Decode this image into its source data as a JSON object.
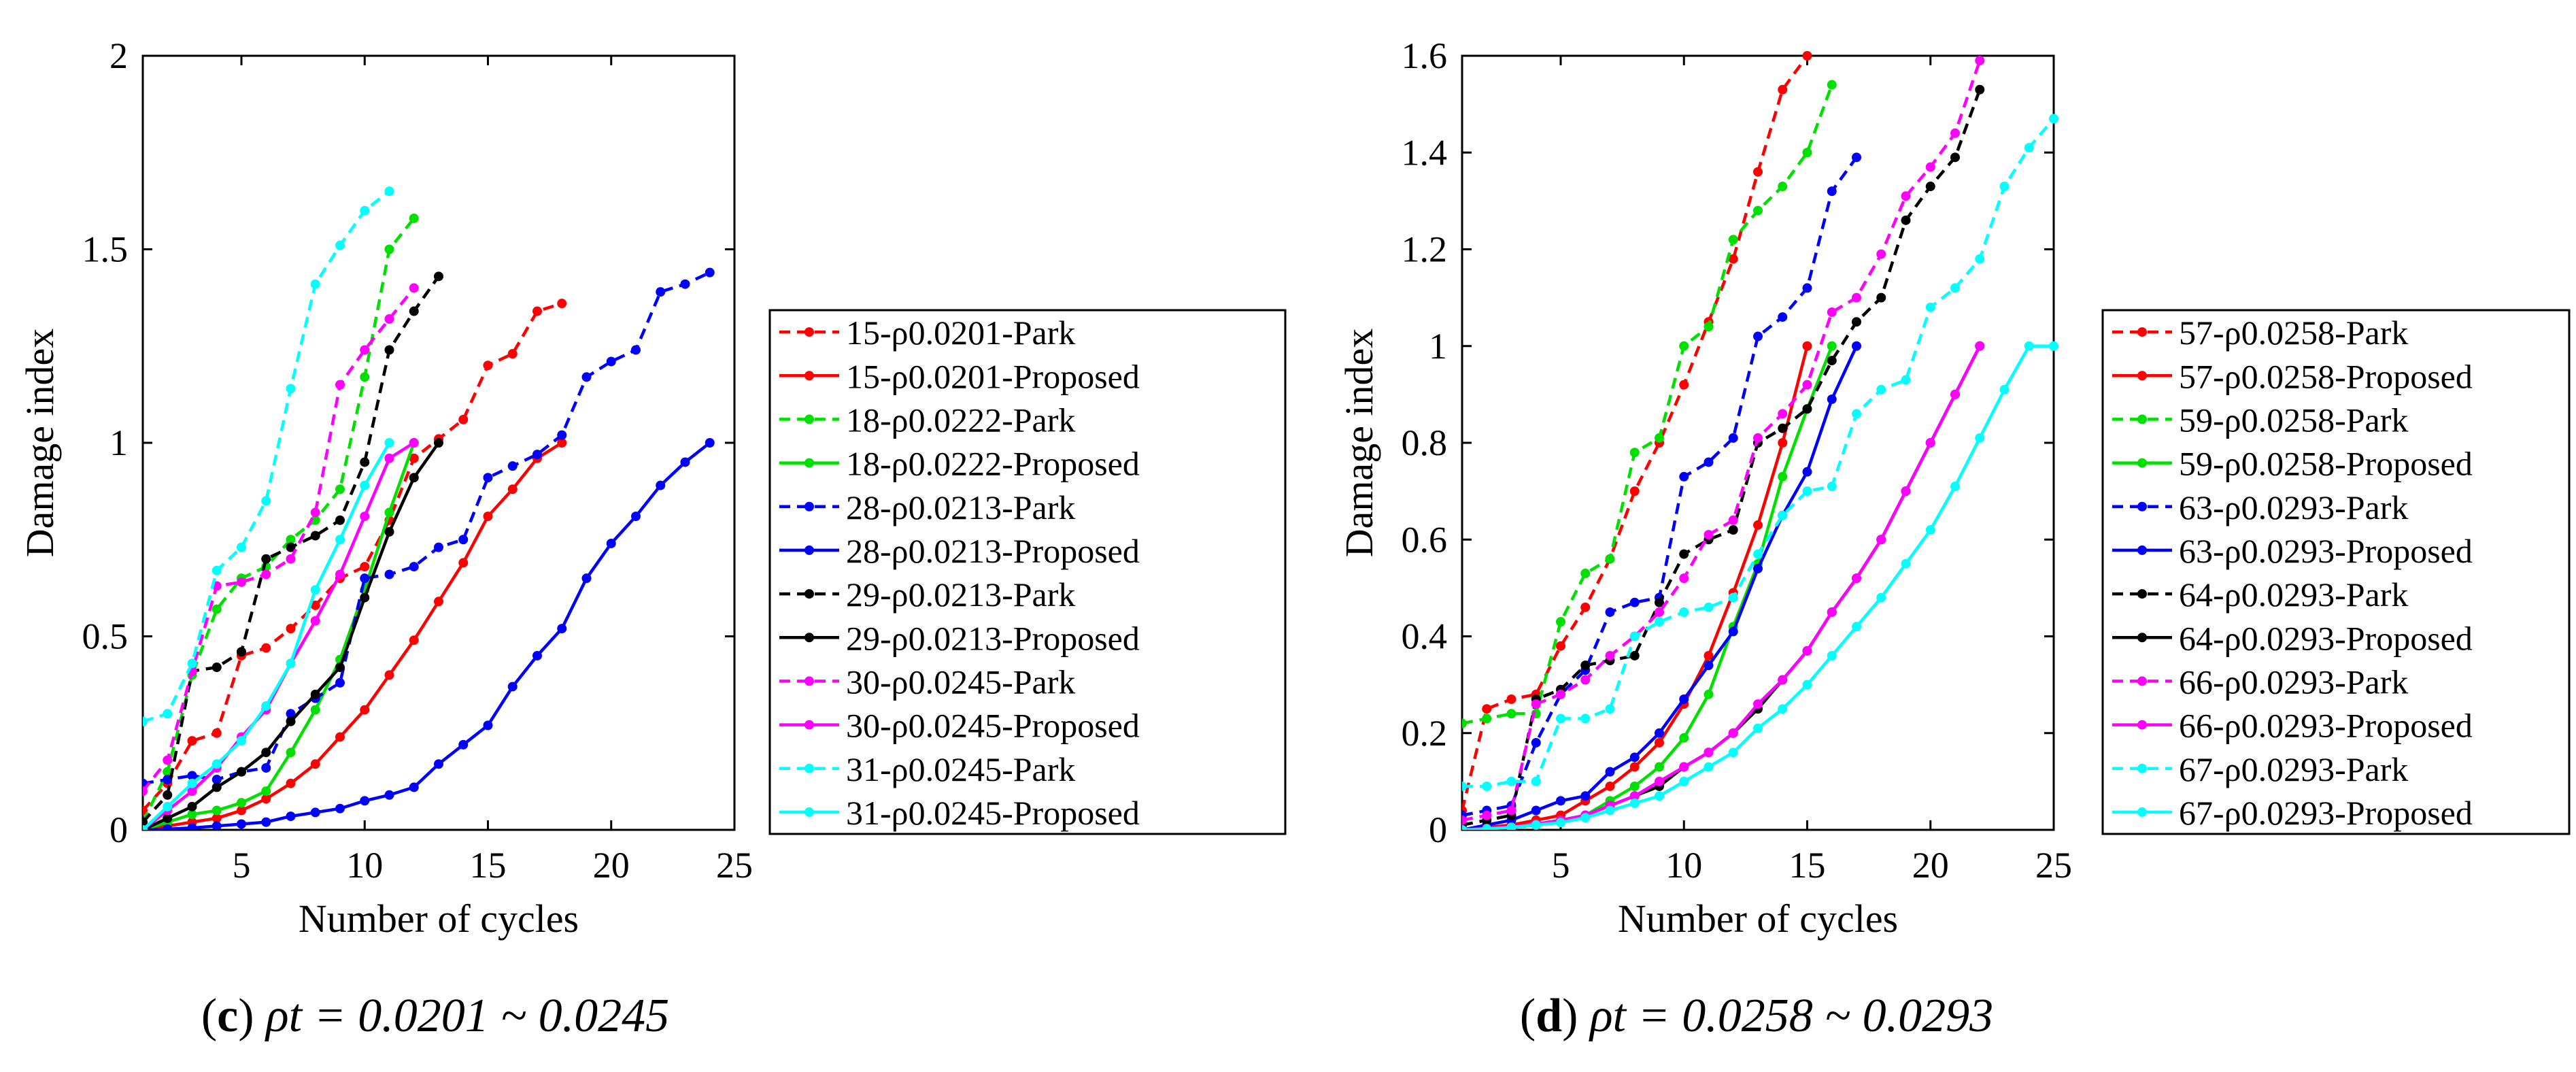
{
  "chart_data": [
    {
      "type": "line",
      "caption": {
        "letter": "c",
        "formula": "ρt = 0.0201 ~ 0.0245"
      },
      "xlabel": "Number of cycles",
      "ylabel": "Damage index",
      "xlim": [
        1,
        25
      ],
      "ylim": [
        0,
        2
      ],
      "xticks": [
        5,
        10,
        15,
        20,
        25
      ],
      "yticks": [
        0,
        0.5,
        1,
        1.5,
        2
      ],
      "grid": false,
      "legend_position": "right-outside",
      "series": [
        {
          "name": "15-ρ0.0201-Park",
          "color": "#ff0000",
          "dash": true,
          "x": [
            1,
            2,
            3,
            4,
            5,
            6,
            7,
            8,
            9,
            10,
            11,
            12,
            13,
            14,
            15,
            16,
            17,
            18
          ],
          "y": [
            0.05,
            0.12,
            0.23,
            0.25,
            0.45,
            0.47,
            0.52,
            0.58,
            0.65,
            0.68,
            0.8,
            0.96,
            1.01,
            1.06,
            1.2,
            1.23,
            1.34,
            1.36
          ]
        },
        {
          "name": "15-ρ0.0201-Proposed",
          "color": "#ff0000",
          "dash": false,
          "x": [
            1,
            2,
            3,
            4,
            5,
            6,
            7,
            8,
            9,
            10,
            11,
            12,
            13,
            14,
            15,
            16,
            17,
            18
          ],
          "y": [
            0,
            0.01,
            0.02,
            0.03,
            0.05,
            0.08,
            0.12,
            0.17,
            0.24,
            0.31,
            0.4,
            0.49,
            0.59,
            0.69,
            0.81,
            0.88,
            0.96,
            1.0
          ]
        },
        {
          "name": "18-ρ0.0222-Park",
          "color": "#00e000",
          "dash": true,
          "x": [
            1,
            2,
            3,
            4,
            5,
            6,
            7,
            8,
            9,
            10,
            11,
            12
          ],
          "y": [
            0.02,
            0.15,
            0.4,
            0.57,
            0.65,
            0.68,
            0.75,
            0.8,
            0.88,
            1.17,
            1.5,
            1.58
          ]
        },
        {
          "name": "18-ρ0.0222-Proposed",
          "color": "#00e000",
          "dash": false,
          "x": [
            1,
            2,
            3,
            4,
            5,
            6,
            7,
            8,
            9,
            10,
            11,
            12
          ],
          "y": [
            0,
            0.02,
            0.04,
            0.05,
            0.07,
            0.1,
            0.2,
            0.31,
            0.44,
            0.62,
            0.82,
            1.0
          ]
        },
        {
          "name": "28-ρ0.0213-Park",
          "color": "#0000ff",
          "dash": true,
          "x": [
            1,
            2,
            3,
            4,
            5,
            6,
            7,
            8,
            9,
            10,
            11,
            12,
            13,
            14,
            15,
            16,
            17,
            18,
            19,
            20,
            21,
            22,
            23,
            24
          ],
          "y": [
            0.12,
            0.13,
            0.14,
            0.13,
            0.15,
            0.16,
            0.3,
            0.34,
            0.38,
            0.65,
            0.66,
            0.68,
            0.73,
            0.75,
            0.91,
            0.94,
            0.97,
            1.02,
            1.17,
            1.21,
            1.24,
            1.39,
            1.41,
            1.44
          ]
        },
        {
          "name": "28-ρ0.0213-Proposed",
          "color": "#0000ff",
          "dash": false,
          "x": [
            1,
            2,
            3,
            4,
            5,
            6,
            7,
            8,
            9,
            10,
            11,
            12,
            13,
            14,
            15,
            16,
            17,
            18,
            19,
            20,
            21,
            22,
            23,
            24
          ],
          "y": [
            0,
            0.002,
            0.005,
            0.01,
            0.015,
            0.02,
            0.035,
            0.045,
            0.055,
            0.075,
            0.09,
            0.11,
            0.17,
            0.22,
            0.27,
            0.37,
            0.45,
            0.52,
            0.65,
            0.74,
            0.81,
            0.89,
            0.95,
            1.0
          ]
        },
        {
          "name": "29-ρ0.0213-Park",
          "color": "#000000",
          "dash": true,
          "x": [
            1,
            2,
            3,
            4,
            5,
            6,
            7,
            8,
            9,
            10,
            11,
            12,
            13
          ],
          "y": [
            0.02,
            0.09,
            0.41,
            0.42,
            0.46,
            0.7,
            0.73,
            0.76,
            0.8,
            0.95,
            1.24,
            1.34,
            1.43
          ]
        },
        {
          "name": "29-ρ0.0213-Proposed",
          "color": "#000000",
          "dash": false,
          "x": [
            1,
            2,
            3,
            4,
            5,
            6,
            7,
            8,
            9,
            10,
            11,
            12,
            13
          ],
          "y": [
            0,
            0.03,
            0.06,
            0.11,
            0.15,
            0.2,
            0.28,
            0.35,
            0.42,
            0.6,
            0.77,
            0.91,
            1.0
          ]
        },
        {
          "name": "30-ρ0.0245-Park",
          "color": "#ff00ff",
          "dash": true,
          "x": [
            1,
            2,
            3,
            4,
            5,
            6,
            7,
            8,
            9,
            10,
            11,
            12
          ],
          "y": [
            0.1,
            0.18,
            0.41,
            0.63,
            0.64,
            0.66,
            0.7,
            0.82,
            1.15,
            1.24,
            1.32,
            1.4
          ]
        },
        {
          "name": "30-ρ0.0245-Proposed",
          "color": "#ff00ff",
          "dash": false,
          "x": [
            1,
            2,
            3,
            4,
            5,
            6,
            7,
            8,
            9,
            10,
            11,
            12
          ],
          "y": [
            0,
            0.05,
            0.1,
            0.16,
            0.24,
            0.31,
            0.43,
            0.54,
            0.66,
            0.81,
            0.96,
            1.0
          ]
        },
        {
          "name": "31-ρ0.0245-Park",
          "color": "#00ffff",
          "dash": true,
          "x": [
            1,
            2,
            3,
            4,
            5,
            6,
            7,
            8,
            9,
            10,
            11
          ],
          "y": [
            0.28,
            0.3,
            0.43,
            0.67,
            0.73,
            0.85,
            1.14,
            1.41,
            1.51,
            1.6,
            1.65
          ]
        },
        {
          "name": "31-ρ0.0245-Proposed",
          "color": "#00ffff",
          "dash": false,
          "x": [
            1,
            2,
            3,
            4,
            5,
            6,
            7,
            8,
            9,
            10,
            11
          ],
          "y": [
            0,
            0.06,
            0.12,
            0.17,
            0.23,
            0.32,
            0.43,
            0.62,
            0.75,
            0.89,
            1.0
          ]
        }
      ]
    },
    {
      "type": "line",
      "caption": {
        "letter": "d",
        "formula": "ρt = 0.0258 ~ 0.0293"
      },
      "xlabel": "Number of cycles",
      "ylabel": "Damage index",
      "xlim": [
        1,
        25
      ],
      "ylim": [
        0,
        1.6
      ],
      "xticks": [
        5,
        10,
        15,
        20,
        25
      ],
      "yticks": [
        0,
        0.2,
        0.4,
        0.6,
        0.8,
        1,
        1.2,
        1.4,
        1.6
      ],
      "grid": false,
      "legend_position": "right-outside",
      "series": [
        {
          "name": "57-ρ0.0258-Park",
          "color": "#ff0000",
          "dash": true,
          "x": [
            1,
            2,
            3,
            4,
            5,
            6,
            7,
            8,
            9,
            10,
            11,
            12,
            13,
            14,
            15
          ],
          "y": [
            0.04,
            0.25,
            0.27,
            0.28,
            0.38,
            0.46,
            0.56,
            0.7,
            0.8,
            0.92,
            1.05,
            1.18,
            1.36,
            1.53,
            1.6
          ]
        },
        {
          "name": "57-ρ0.0258-Proposed",
          "color": "#ff0000",
          "dash": false,
          "x": [
            1,
            2,
            3,
            4,
            5,
            6,
            7,
            8,
            9,
            10,
            11,
            12,
            13,
            14,
            15
          ],
          "y": [
            0,
            0.005,
            0.01,
            0.02,
            0.03,
            0.06,
            0.09,
            0.13,
            0.18,
            0.26,
            0.36,
            0.49,
            0.63,
            0.8,
            1.0
          ]
        },
        {
          "name": "59-ρ0.0258-Park",
          "color": "#00e000",
          "dash": true,
          "x": [
            1,
            2,
            3,
            4,
            5,
            6,
            7,
            8,
            9,
            10,
            11,
            12,
            13,
            14,
            15,
            16
          ],
          "y": [
            0.22,
            0.23,
            0.24,
            0.24,
            0.43,
            0.53,
            0.56,
            0.78,
            0.81,
            1.0,
            1.04,
            1.22,
            1.28,
            1.33,
            1.4,
            1.54
          ]
        },
        {
          "name": "59-ρ0.0258-Proposed",
          "color": "#00e000",
          "dash": false,
          "x": [
            1,
            2,
            3,
            4,
            5,
            6,
            7,
            8,
            9,
            10,
            11,
            12,
            13,
            14,
            15,
            16
          ],
          "y": [
            0,
            0.003,
            0.005,
            0.01,
            0.02,
            0.03,
            0.06,
            0.09,
            0.13,
            0.19,
            0.28,
            0.42,
            0.55,
            0.73,
            0.87,
            1.0
          ]
        },
        {
          "name": "63-ρ0.0293-Park",
          "color": "#0000ff",
          "dash": true,
          "x": [
            1,
            2,
            3,
            4,
            5,
            6,
            7,
            8,
            9,
            10,
            11,
            12,
            13,
            14,
            15,
            16,
            17
          ],
          "y": [
            0.03,
            0.04,
            0.05,
            0.18,
            0.28,
            0.33,
            0.45,
            0.47,
            0.48,
            0.73,
            0.76,
            0.81,
            1.02,
            1.06,
            1.12,
            1.32,
            1.39
          ]
        },
        {
          "name": "63-ρ0.0293-Proposed",
          "color": "#0000ff",
          "dash": false,
          "x": [
            1,
            2,
            3,
            4,
            5,
            6,
            7,
            8,
            9,
            10,
            11,
            12,
            13,
            14,
            15,
            16,
            17
          ],
          "y": [
            0,
            0.01,
            0.02,
            0.04,
            0.06,
            0.07,
            0.12,
            0.15,
            0.2,
            0.27,
            0.34,
            0.41,
            0.54,
            0.65,
            0.74,
            0.89,
            1.0
          ]
        },
        {
          "name": "64-ρ0.0293-Park",
          "color": "#000000",
          "dash": true,
          "x": [
            1,
            2,
            3,
            4,
            5,
            6,
            7,
            8,
            9,
            10,
            11,
            12,
            13,
            14,
            15,
            16,
            17,
            18,
            19,
            20,
            21,
            22
          ],
          "y": [
            0.01,
            0.02,
            0.03,
            0.27,
            0.29,
            0.34,
            0.35,
            0.36,
            0.47,
            0.57,
            0.6,
            0.62,
            0.8,
            0.83,
            0.87,
            0.97,
            1.05,
            1.1,
            1.26,
            1.33,
            1.39,
            1.53
          ]
        },
        {
          "name": "64-ρ0.0293-Proposed",
          "color": "#000000",
          "dash": false,
          "x": [
            1,
            2,
            3,
            4,
            5,
            6,
            7,
            8,
            9,
            10,
            11,
            12,
            13,
            14,
            15,
            16,
            17,
            18,
            19,
            20,
            21,
            22
          ],
          "y": [
            0,
            0.002,
            0.005,
            0.01,
            0.02,
            0.03,
            0.05,
            0.07,
            0.09,
            0.13,
            0.16,
            0.2,
            0.25,
            0.31,
            0.37,
            0.45,
            0.52,
            0.6,
            0.7,
            0.8,
            0.9,
            1.0
          ]
        },
        {
          "name": "66-ρ0.0293-Park",
          "color": "#ff00ff",
          "dash": true,
          "x": [
            1,
            2,
            3,
            4,
            5,
            6,
            7,
            8,
            9,
            10,
            11,
            12,
            13,
            14,
            15,
            16,
            17,
            18,
            19,
            20,
            21,
            22
          ],
          "y": [
            0.02,
            0.03,
            0.04,
            0.26,
            0.28,
            0.31,
            0.36,
            0.4,
            0.45,
            0.52,
            0.61,
            0.64,
            0.81,
            0.86,
            0.92,
            1.07,
            1.1,
            1.19,
            1.31,
            1.37,
            1.44,
            1.59
          ]
        },
        {
          "name": "66-ρ0.0293-Proposed",
          "color": "#ff00ff",
          "dash": false,
          "x": [
            1,
            2,
            3,
            4,
            5,
            6,
            7,
            8,
            9,
            10,
            11,
            12,
            13,
            14,
            15,
            16,
            17,
            18,
            19,
            20,
            21,
            22
          ],
          "y": [
            0,
            0.003,
            0.006,
            0.012,
            0.02,
            0.03,
            0.05,
            0.07,
            0.1,
            0.13,
            0.16,
            0.2,
            0.26,
            0.31,
            0.37,
            0.45,
            0.52,
            0.6,
            0.7,
            0.8,
            0.9,
            1.0
          ]
        },
        {
          "name": "67-ρ0.0293-Park",
          "color": "#00ffff",
          "dash": true,
          "x": [
            1,
            2,
            3,
            4,
            5,
            6,
            7,
            8,
            9,
            10,
            11,
            12,
            13,
            14,
            15,
            16,
            17,
            18,
            19,
            20,
            21,
            22,
            23,
            24,
            25
          ],
          "y": [
            0.09,
            0.09,
            0.1,
            0.1,
            0.23,
            0.23,
            0.25,
            0.4,
            0.43,
            0.45,
            0.46,
            0.48,
            0.57,
            0.65,
            0.7,
            0.71,
            0.86,
            0.91,
            0.93,
            1.08,
            1.12,
            1.18,
            1.33,
            1.41,
            1.47
          ]
        },
        {
          "name": "67-ρ0.0293-Proposed",
          "color": "#00ffff",
          "dash": false,
          "x": [
            1,
            2,
            3,
            4,
            5,
            6,
            7,
            8,
            9,
            10,
            11,
            12,
            13,
            14,
            15,
            16,
            17,
            18,
            19,
            20,
            21,
            22,
            23,
            24,
            25
          ],
          "y": [
            0,
            0.002,
            0.005,
            0.01,
            0.015,
            0.025,
            0.04,
            0.055,
            0.07,
            0.1,
            0.13,
            0.16,
            0.21,
            0.25,
            0.3,
            0.36,
            0.42,
            0.48,
            0.55,
            0.62,
            0.71,
            0.81,
            0.91,
            1.0,
            1.0
          ]
        }
      ]
    }
  ]
}
